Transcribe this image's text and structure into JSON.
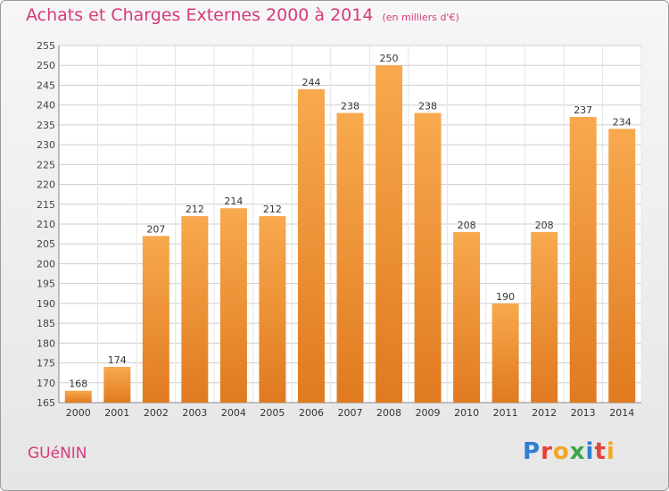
{
  "header": {
    "title": "Achats et Charges Externes 2000 à 2014",
    "subtitle": "(en milliers d'€)"
  },
  "footer": {
    "commune": "GUéNIN",
    "logo": "Proxiti"
  },
  "colors": {
    "title": "#d63a7c",
    "bar_top": "#f8a94e",
    "bar_bottom": "#e07a20",
    "grid": "#cfcfcf"
  },
  "chart_data": {
    "type": "bar",
    "categories": [
      "2000",
      "2001",
      "2002",
      "2003",
      "2004",
      "2005",
      "2006",
      "2007",
      "2008",
      "2009",
      "2010",
      "2011",
      "2012",
      "2013",
      "2014"
    ],
    "values": [
      168,
      174,
      207,
      212,
      214,
      212,
      244,
      238,
      250,
      238,
      208,
      190,
      208,
      237,
      234
    ],
    "ylim": [
      165,
      255
    ],
    "yticks": [
      165,
      170,
      175,
      180,
      185,
      190,
      195,
      200,
      205,
      210,
      215,
      220,
      225,
      230,
      235,
      240,
      245,
      250,
      255
    ],
    "grid": true,
    "data_labels": true
  }
}
